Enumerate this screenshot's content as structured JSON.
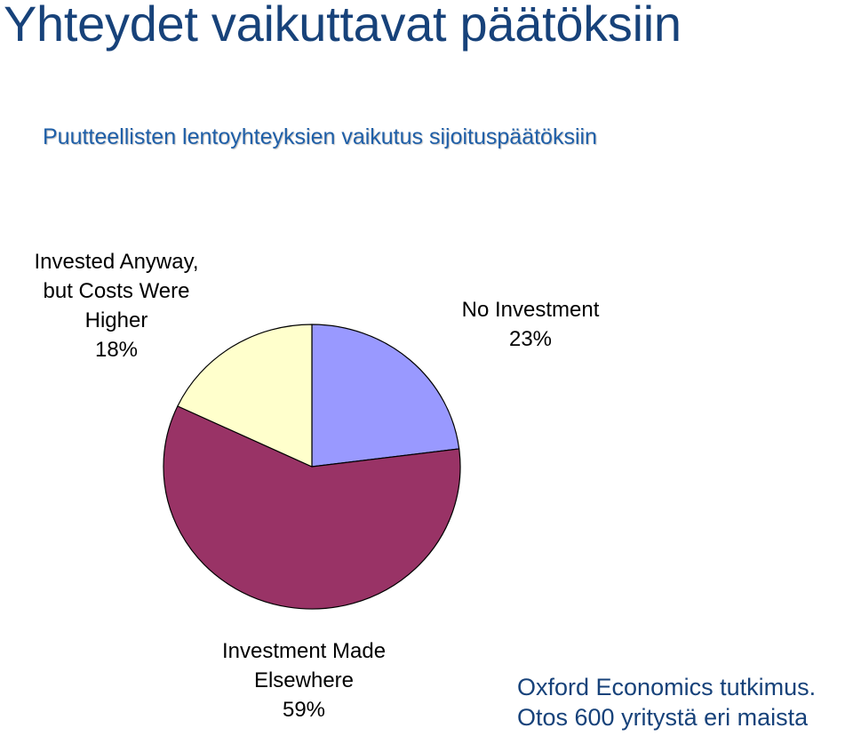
{
  "slide": {
    "title": "Yhteydet vaikuttavat päätöksiin"
  },
  "chart_data": {
    "type": "pie",
    "title": "Puutteellisten lentoyhteyksien vaikutus sijoituspäätöksiin",
    "slices": [
      {
        "label_lines": [
          "No Investment"
        ],
        "value": 23,
        "value_label": "23%",
        "color": "#9999ff"
      },
      {
        "label_lines": [
          "Investment Made",
          "Elsewhere"
        ],
        "value": 59,
        "value_label": "59%",
        "color": "#993366"
      },
      {
        "label_lines": [
          "Invested Anyway,",
          "but Costs Were",
          "Higher"
        ],
        "value": 18,
        "value_label": "18%",
        "color": "#ffffcc"
      }
    ],
    "start_angle": "12 o'clock",
    "direction": "clockwise",
    "legend": "none",
    "labels": "outside"
  },
  "source": {
    "line1": "Oxford Economics tutkimus.",
    "line2": "Otos 600 yritystä eri maista"
  }
}
